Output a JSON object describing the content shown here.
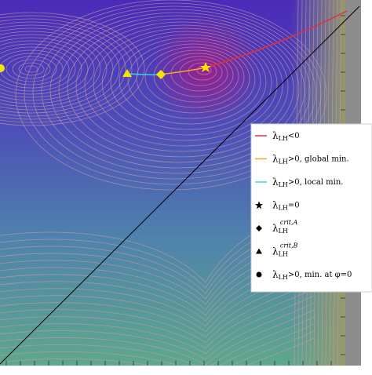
{
  "chart_data": {
    "type": "contour",
    "series": [
      {
        "label": {
          "main": "λ",
          "sub": "LH",
          "tail": "<0"
        },
        "color": "#e0303a",
        "marker": "line"
      },
      {
        "label": {
          "main": "λ",
          "sub": "LH",
          "tail": ">0, global min."
        },
        "color": "#f5a623",
        "marker": "line"
      },
      {
        "label": {
          "main": "λ",
          "sub": "LH",
          "tail": ">0, local min."
        },
        "color": "#3fd0e8",
        "marker": "line"
      },
      {
        "label": {
          "main": "λ",
          "sub": "LH",
          "tail": "=0"
        },
        "color": "#f2e600",
        "marker": "star"
      },
      {
        "label": {
          "main": "λ",
          "sub": "LH",
          "sup": "crit,A"
        },
        "color": "#f2e600",
        "marker": "diamond"
      },
      {
        "label": {
          "main": "λ",
          "sub": "LH",
          "sup": "crit,B"
        },
        "color": "#f2e600",
        "marker": "triangle"
      },
      {
        "label": {
          "main": "λ",
          "sub": "LH",
          "tail": ">0, min. at φ=0"
        },
        "color": "#f2e600",
        "marker": "circle"
      }
    ]
  }
}
